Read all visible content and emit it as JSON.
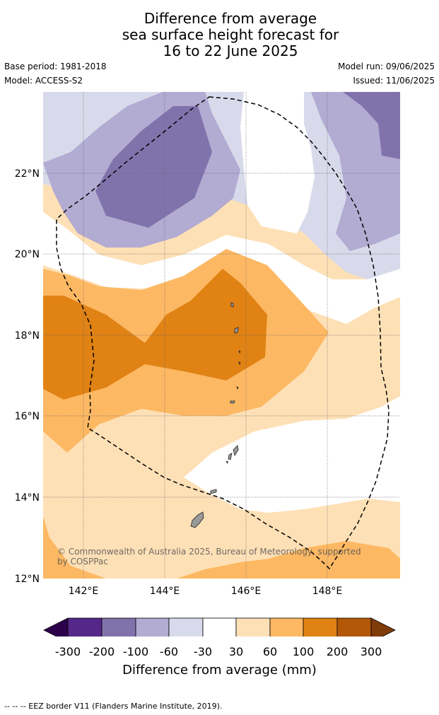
{
  "title": {
    "line1": "Difference from average",
    "line2": "sea surface height forecast for",
    "line3": "16 to 22 June 2025"
  },
  "meta": {
    "base_period": "Base period: 1981-2018",
    "model": "Model: ACCESS-S2",
    "model_run": "Model run: 09/06/2025",
    "issued": "Issued: 11/06/2025"
  },
  "map": {
    "lon_range": [
      141,
      149.8
    ],
    "lat_range": [
      12,
      24
    ],
    "lon_ticks": [
      "142°E",
      "144°E",
      "146°E",
      "148°E"
    ],
    "lat_ticks": [
      "22°N",
      "20°N",
      "18°N",
      "16°N",
      "14°N",
      "12°N"
    ],
    "grid": true,
    "overlay": "EEZ border (dashed)"
  },
  "copyright": "© Commonwealth of Australia 2025, Bureau of Meteorology, supported by COSPPac",
  "colorbar": {
    "label": "Difference from average (mm)",
    "ticks": [
      "-300",
      "-200",
      "-100",
      "-60",
      "-30",
      "30",
      "60",
      "100",
      "200",
      "300"
    ],
    "colors": [
      "#2d004b",
      "#542788",
      "#8073ac",
      "#b2abd2",
      "#d8daeb",
      "#ffffff",
      "#fee0b6",
      "#fdb863",
      "#e08214",
      "#b35806",
      "#7f3b08"
    ]
  },
  "footer": "--  --  -- EEZ border V11 (Flanders Marine Institute, 2019)."
}
